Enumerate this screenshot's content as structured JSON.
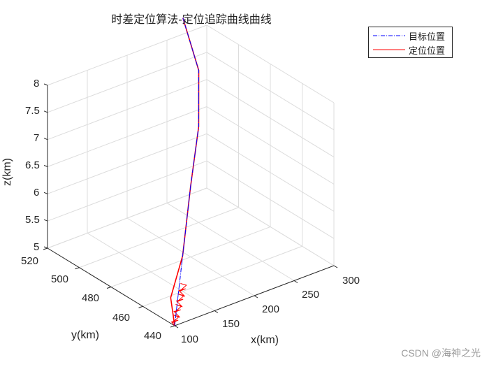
{
  "chart_data": {
    "type": "line",
    "projection": "3d",
    "title": "时差定位算法-定位追踪曲线曲线",
    "xlabel": "x(km)",
    "ylabel": "y(km)",
    "zlabel": "z(km)",
    "xlim": [
      100,
      300
    ],
    "ylim": [
      440,
      520
    ],
    "zlim": [
      5,
      8
    ],
    "xticks": [
      "100",
      "150",
      "200",
      "250",
      "300"
    ],
    "yticks": [
      "440",
      "460",
      "480",
      "500",
      "520"
    ],
    "zticks": [
      "5",
      "5.5",
      "6",
      "6.5",
      "7",
      "7.5",
      "8"
    ],
    "grid": true,
    "legend_position": "northeast-outside",
    "series": [
      {
        "name": "目标位置",
        "color": "#0000ff",
        "line_style": "dash-dot",
        "points": [
          {
            "x": 100,
            "y": 440,
            "z": 5.0
          },
          {
            "x": 140,
            "y": 455,
            "z": 5.8
          },
          {
            "x": 180,
            "y": 470,
            "z": 6.6
          },
          {
            "x": 220,
            "y": 485,
            "z": 7.2
          },
          {
            "x": 250,
            "y": 500,
            "z": 7.8
          },
          {
            "x": 270,
            "y": 520,
            "z": 8.3
          }
        ]
      },
      {
        "name": "定位位置",
        "color": "#ff0000",
        "line_style": "solid",
        "points": [
          {
            "x": 100,
            "y": 440,
            "z": 5.0
          },
          {
            "x": 105,
            "y": 445,
            "z": 5.4
          },
          {
            "x": 140,
            "y": 455,
            "z": 5.8
          },
          {
            "x": 180,
            "y": 470,
            "z": 6.6
          },
          {
            "x": 220,
            "y": 485,
            "z": 7.2
          },
          {
            "x": 250,
            "y": 500,
            "z": 7.8
          },
          {
            "x": 270,
            "y": 520,
            "z": 8.3
          }
        ]
      }
    ]
  },
  "legend": {
    "items": [
      {
        "label": "目标位置",
        "color": "#0000ff",
        "style": "dash-dot"
      },
      {
        "label": "定位位置",
        "color": "#ff0000",
        "style": "solid"
      }
    ]
  },
  "watermark": "CSDN @海神之光"
}
